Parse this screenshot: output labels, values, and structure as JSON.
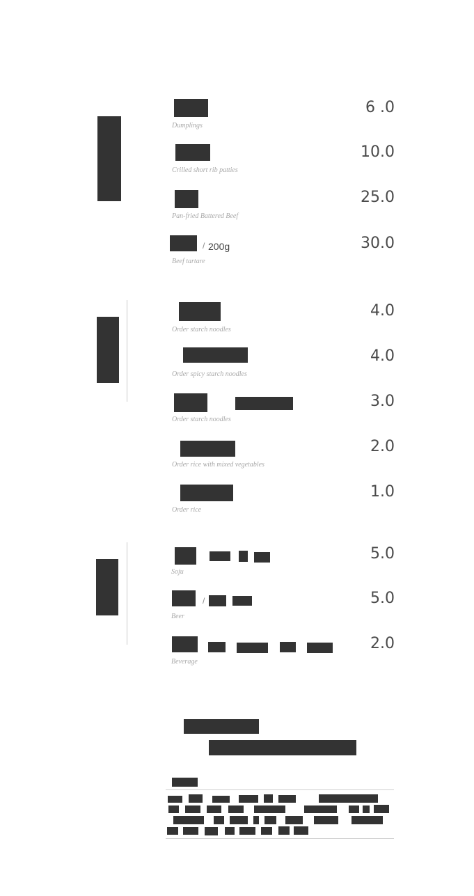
{
  "sections": [
    {
      "items": [
        {
          "name_en": "Dumplings",
          "price": "6 .0"
        },
        {
          "name_en": "Crilled short rib patties",
          "price": "10.0"
        },
        {
          "name_en": "Pan-fried Battered Beef",
          "price": "25.0"
        },
        {
          "name_en": "Beef tartare",
          "price": "30.0",
          "extra": "200g"
        }
      ]
    },
    {
      "items": [
        {
          "name_en": "Order starch noodles",
          "price": "4.0"
        },
        {
          "name_en": "Order spicy starch noodles",
          "price": "4.0"
        },
        {
          "name_en": "Order starch noodles",
          "price": "3.0"
        },
        {
          "name_en": "Order rice with mixed vegetables",
          "price": "2.0"
        },
        {
          "name_en": "Order rice",
          "price": "1.0"
        }
      ]
    },
    {
      "items": [
        {
          "name_en": "Soju",
          "price": "5.0"
        },
        {
          "name_en": "Beer",
          "price": "5.0"
        },
        {
          "name_en": "Beverage",
          "price": "2.0"
        }
      ]
    }
  ]
}
